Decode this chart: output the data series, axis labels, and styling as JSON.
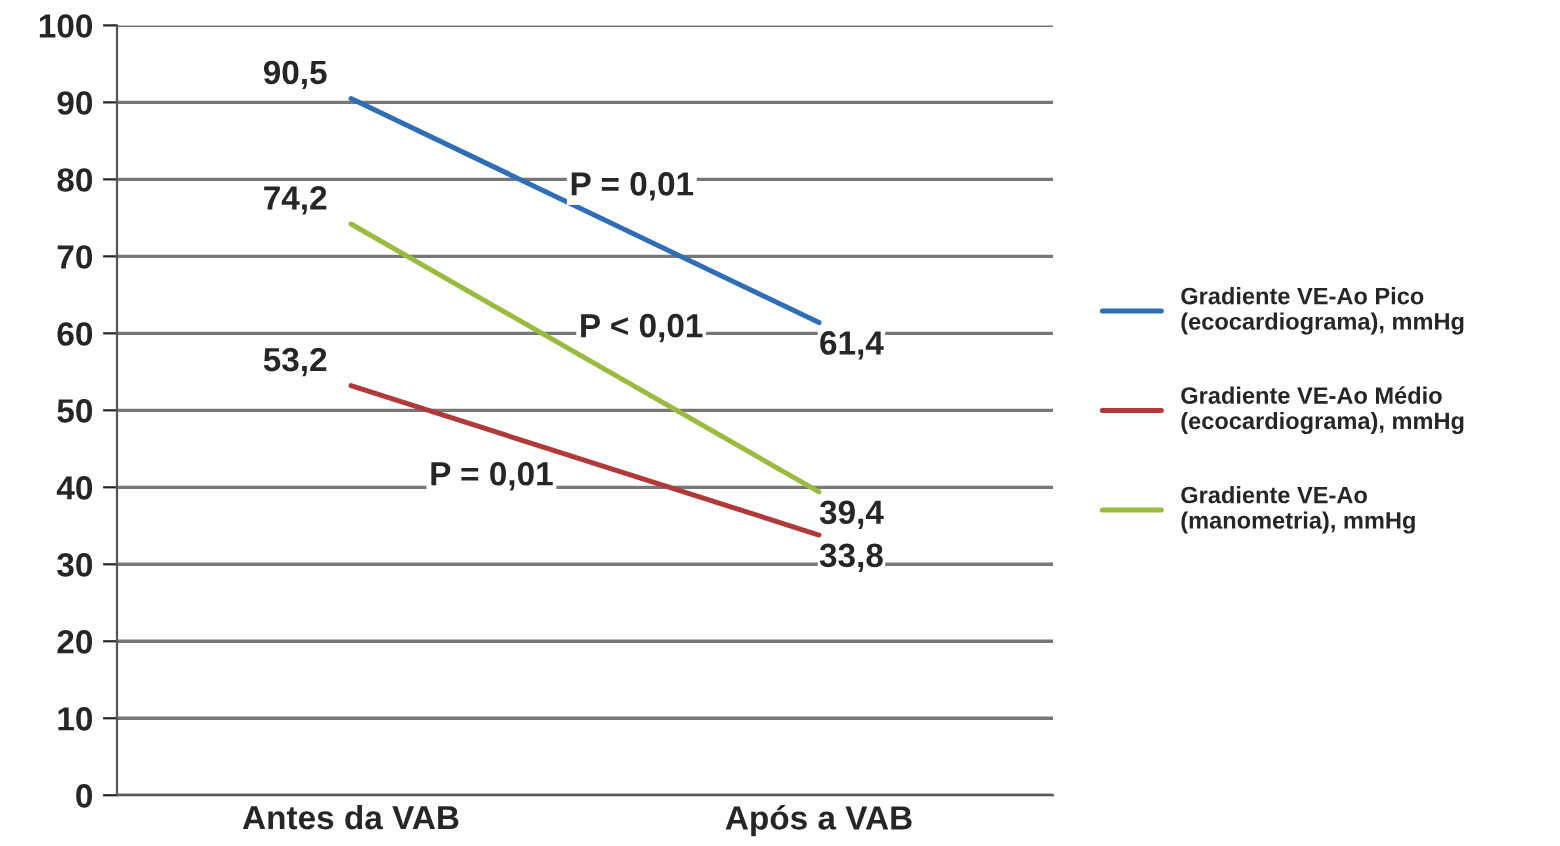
{
  "chart_data": {
    "type": "line",
    "categories": [
      "Antes da VAB",
      "Após a VAB"
    ],
    "series": [
      {
        "name": "Gradiente VE-Ao Pico\n(ecocardiograma), mmHg",
        "color": "#2f6db5",
        "values": [
          90.5,
          61.4
        ],
        "value_labels": [
          "90,5",
          "61,4"
        ]
      },
      {
        "name": "Gradiente VE-Ao Médio\n(ecocardiograma), mmHg",
        "color": "#b03a3a",
        "values": [
          53.2,
          33.8
        ],
        "value_labels": [
          "53,2",
          "33,8"
        ]
      },
      {
        "name": "Gradiente VE-Ao\n(manometria), mmHg",
        "color": "#9bbb40",
        "values": [
          74.2,
          39.4
        ],
        "value_labels": [
          "74,2",
          "39,4"
        ]
      }
    ],
    "annotations": [
      "P = 0,01",
      "P < 0,01",
      "P = 0,01"
    ],
    "ylim": [
      0,
      100
    ],
    "yticks": [
      0,
      10,
      20,
      30,
      40,
      50,
      60,
      70,
      80,
      90,
      100
    ],
    "grid": "y",
    "legend": "right",
    "marker": "none",
    "line_style": "solid"
  }
}
